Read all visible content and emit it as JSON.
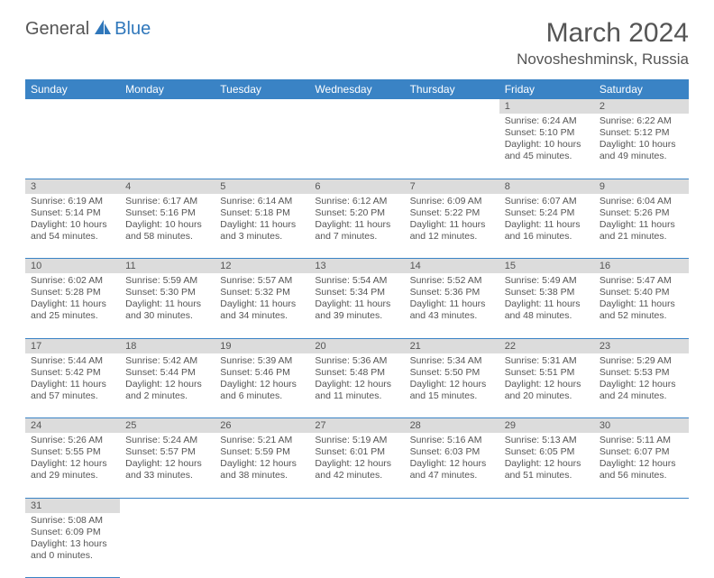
{
  "brand": {
    "part1": "General",
    "part2": "Blue"
  },
  "title": {
    "month": "March 2024",
    "location": "Novosheshminsk, Russia"
  },
  "colors": {
    "header_bg": "#3a83c5",
    "header_text": "#ffffff",
    "daynum_bg": "#dcdcdc",
    "text": "#555555",
    "rule": "#3a83c5",
    "brand_blue": "#2f77bb",
    "page_bg": "#ffffff"
  },
  "fonts": {
    "base": "Arial",
    "title_size": 30,
    "loc_size": 17,
    "head_size": 12,
    "cell_size": 10.5
  },
  "calendar": {
    "type": "calendar-table",
    "columns": [
      "Sunday",
      "Monday",
      "Tuesday",
      "Wednesday",
      "Thursday",
      "Friday",
      "Saturday"
    ],
    "weeks": [
      [
        null,
        null,
        null,
        null,
        null,
        {
          "n": "1",
          "sr": "Sunrise: 6:24 AM",
          "ss": "Sunset: 5:10 PM",
          "dl1": "Daylight: 10 hours",
          "dl2": "and 45 minutes."
        },
        {
          "n": "2",
          "sr": "Sunrise: 6:22 AM",
          "ss": "Sunset: 5:12 PM",
          "dl1": "Daylight: 10 hours",
          "dl2": "and 49 minutes."
        }
      ],
      [
        {
          "n": "3",
          "sr": "Sunrise: 6:19 AM",
          "ss": "Sunset: 5:14 PM",
          "dl1": "Daylight: 10 hours",
          "dl2": "and 54 minutes."
        },
        {
          "n": "4",
          "sr": "Sunrise: 6:17 AM",
          "ss": "Sunset: 5:16 PM",
          "dl1": "Daylight: 10 hours",
          "dl2": "and 58 minutes."
        },
        {
          "n": "5",
          "sr": "Sunrise: 6:14 AM",
          "ss": "Sunset: 5:18 PM",
          "dl1": "Daylight: 11 hours",
          "dl2": "and 3 minutes."
        },
        {
          "n": "6",
          "sr": "Sunrise: 6:12 AM",
          "ss": "Sunset: 5:20 PM",
          "dl1": "Daylight: 11 hours",
          "dl2": "and 7 minutes."
        },
        {
          "n": "7",
          "sr": "Sunrise: 6:09 AM",
          "ss": "Sunset: 5:22 PM",
          "dl1": "Daylight: 11 hours",
          "dl2": "and 12 minutes."
        },
        {
          "n": "8",
          "sr": "Sunrise: 6:07 AM",
          "ss": "Sunset: 5:24 PM",
          "dl1": "Daylight: 11 hours",
          "dl2": "and 16 minutes."
        },
        {
          "n": "9",
          "sr": "Sunrise: 6:04 AM",
          "ss": "Sunset: 5:26 PM",
          "dl1": "Daylight: 11 hours",
          "dl2": "and 21 minutes."
        }
      ],
      [
        {
          "n": "10",
          "sr": "Sunrise: 6:02 AM",
          "ss": "Sunset: 5:28 PM",
          "dl1": "Daylight: 11 hours",
          "dl2": "and 25 minutes."
        },
        {
          "n": "11",
          "sr": "Sunrise: 5:59 AM",
          "ss": "Sunset: 5:30 PM",
          "dl1": "Daylight: 11 hours",
          "dl2": "and 30 minutes."
        },
        {
          "n": "12",
          "sr": "Sunrise: 5:57 AM",
          "ss": "Sunset: 5:32 PM",
          "dl1": "Daylight: 11 hours",
          "dl2": "and 34 minutes."
        },
        {
          "n": "13",
          "sr": "Sunrise: 5:54 AM",
          "ss": "Sunset: 5:34 PM",
          "dl1": "Daylight: 11 hours",
          "dl2": "and 39 minutes."
        },
        {
          "n": "14",
          "sr": "Sunrise: 5:52 AM",
          "ss": "Sunset: 5:36 PM",
          "dl1": "Daylight: 11 hours",
          "dl2": "and 43 minutes."
        },
        {
          "n": "15",
          "sr": "Sunrise: 5:49 AM",
          "ss": "Sunset: 5:38 PM",
          "dl1": "Daylight: 11 hours",
          "dl2": "and 48 minutes."
        },
        {
          "n": "16",
          "sr": "Sunrise: 5:47 AM",
          "ss": "Sunset: 5:40 PM",
          "dl1": "Daylight: 11 hours",
          "dl2": "and 52 minutes."
        }
      ],
      [
        {
          "n": "17",
          "sr": "Sunrise: 5:44 AM",
          "ss": "Sunset: 5:42 PM",
          "dl1": "Daylight: 11 hours",
          "dl2": "and 57 minutes."
        },
        {
          "n": "18",
          "sr": "Sunrise: 5:42 AM",
          "ss": "Sunset: 5:44 PM",
          "dl1": "Daylight: 12 hours",
          "dl2": "and 2 minutes."
        },
        {
          "n": "19",
          "sr": "Sunrise: 5:39 AM",
          "ss": "Sunset: 5:46 PM",
          "dl1": "Daylight: 12 hours",
          "dl2": "and 6 minutes."
        },
        {
          "n": "20",
          "sr": "Sunrise: 5:36 AM",
          "ss": "Sunset: 5:48 PM",
          "dl1": "Daylight: 12 hours",
          "dl2": "and 11 minutes."
        },
        {
          "n": "21",
          "sr": "Sunrise: 5:34 AM",
          "ss": "Sunset: 5:50 PM",
          "dl1": "Daylight: 12 hours",
          "dl2": "and 15 minutes."
        },
        {
          "n": "22",
          "sr": "Sunrise: 5:31 AM",
          "ss": "Sunset: 5:51 PM",
          "dl1": "Daylight: 12 hours",
          "dl2": "and 20 minutes."
        },
        {
          "n": "23",
          "sr": "Sunrise: 5:29 AM",
          "ss": "Sunset: 5:53 PM",
          "dl1": "Daylight: 12 hours",
          "dl2": "and 24 minutes."
        }
      ],
      [
        {
          "n": "24",
          "sr": "Sunrise: 5:26 AM",
          "ss": "Sunset: 5:55 PM",
          "dl1": "Daylight: 12 hours",
          "dl2": "and 29 minutes."
        },
        {
          "n": "25",
          "sr": "Sunrise: 5:24 AM",
          "ss": "Sunset: 5:57 PM",
          "dl1": "Daylight: 12 hours",
          "dl2": "and 33 minutes."
        },
        {
          "n": "26",
          "sr": "Sunrise: 5:21 AM",
          "ss": "Sunset: 5:59 PM",
          "dl1": "Daylight: 12 hours",
          "dl2": "and 38 minutes."
        },
        {
          "n": "27",
          "sr": "Sunrise: 5:19 AM",
          "ss": "Sunset: 6:01 PM",
          "dl1": "Daylight: 12 hours",
          "dl2": "and 42 minutes."
        },
        {
          "n": "28",
          "sr": "Sunrise: 5:16 AM",
          "ss": "Sunset: 6:03 PM",
          "dl1": "Daylight: 12 hours",
          "dl2": "and 47 minutes."
        },
        {
          "n": "29",
          "sr": "Sunrise: 5:13 AM",
          "ss": "Sunset: 6:05 PM",
          "dl1": "Daylight: 12 hours",
          "dl2": "and 51 minutes."
        },
        {
          "n": "30",
          "sr": "Sunrise: 5:11 AM",
          "ss": "Sunset: 6:07 PM",
          "dl1": "Daylight: 12 hours",
          "dl2": "and 56 minutes."
        }
      ],
      [
        {
          "n": "31",
          "sr": "Sunrise: 5:08 AM",
          "ss": "Sunset: 6:09 PM",
          "dl1": "Daylight: 13 hours",
          "dl2": "and 0 minutes."
        },
        null,
        null,
        null,
        null,
        null,
        null
      ]
    ]
  }
}
